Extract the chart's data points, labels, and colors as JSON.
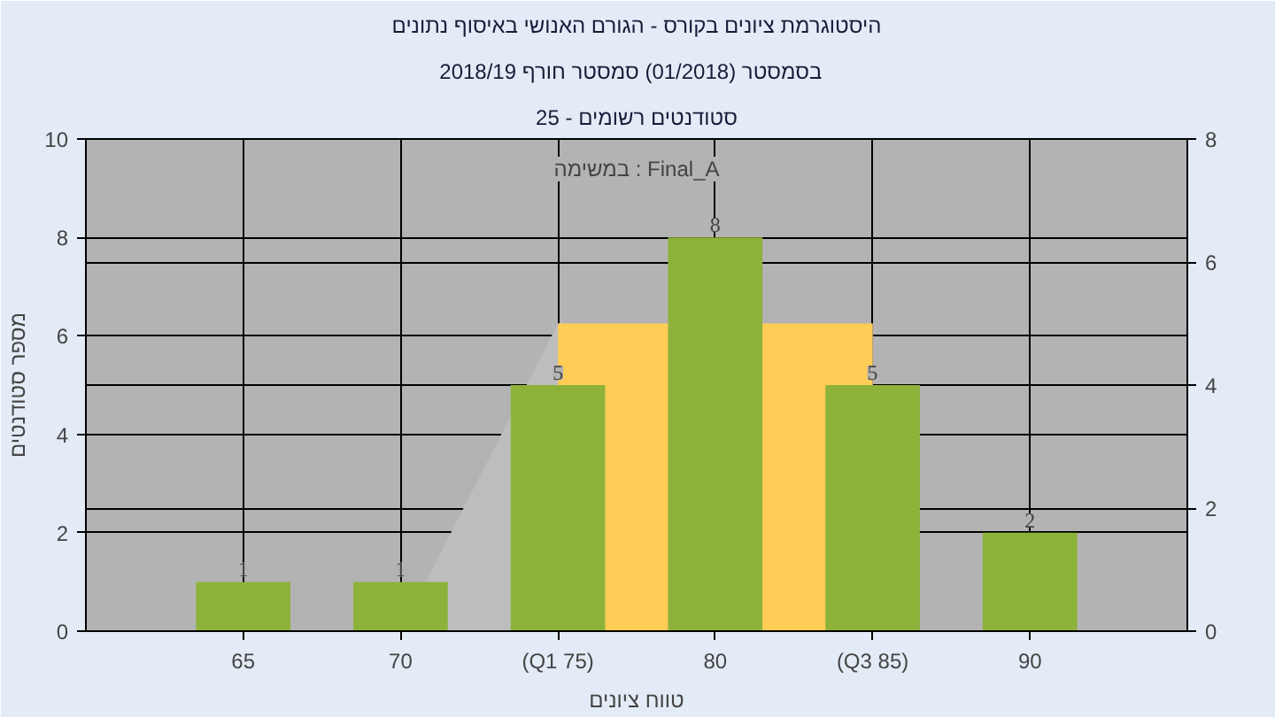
{
  "chart_data": {
    "type": "bar",
    "title": "היסטוגרמת ציונים בקורס - הגורם האנושי באיסוף נתונים",
    "subtitle": "בסמסטר  (01/2018)  סמסטר חורף 2018/19",
    "xlabel": "טווח ציונים",
    "ylabel": "מספר סטודנטים",
    "annotations": [
      "סטודנטים רשומים - 25",
      "במשימה : Final_A"
    ],
    "categories": [
      "65",
      "70",
      "(Q1 75)",
      "80",
      "(Q3 85)",
      "90"
    ],
    "series": [
      {
        "type": "area",
        "axis": "y2",
        "color": "#bdbdbd",
        "values": [
          null,
          0,
          5,
          null,
          5,
          null
        ]
      },
      {
        "type": "area",
        "axis": "y2",
        "color": "#ffcc55",
        "values": [
          null,
          null,
          5,
          null,
          5,
          null
        ]
      },
      {
        "color": "#8db23a",
        "values": [
          1,
          1,
          5,
          8,
          5,
          2
        ],
        "value_labels": [
          "1",
          "1",
          "5",
          "8",
          "5",
          "2"
        ]
      }
    ],
    "ylim": [
      0,
      10
    ],
    "yticks": [
      0,
      2,
      4,
      6,
      8,
      10
    ],
    "y2lim": [
      0,
      8
    ],
    "y2ticks": [
      0,
      2,
      4,
      6,
      8
    ],
    "grid": true
  }
}
